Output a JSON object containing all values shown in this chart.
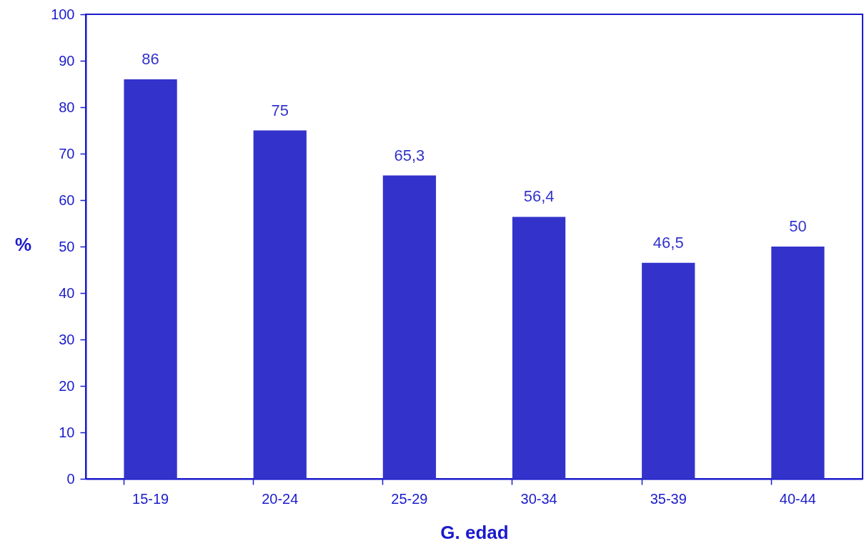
{
  "chart_data": {
    "type": "bar",
    "xlabel": "G. edad",
    "ylabel": "%",
    "categories": [
      "15-19",
      "20-24",
      "25-29",
      "30-34",
      "35-39",
      "40-44"
    ],
    "values": [
      86,
      75,
      65.3,
      56.4,
      46.5,
      50
    ],
    "value_labels": [
      "86",
      "75",
      "65,3",
      "56,4",
      "46,5",
      "50"
    ],
    "color": "#3333cc",
    "ylim": [
      0,
      100
    ],
    "yticks": [
      0,
      10,
      20,
      30,
      40,
      50,
      60,
      70,
      80,
      90,
      100
    ],
    "grid": false
  }
}
